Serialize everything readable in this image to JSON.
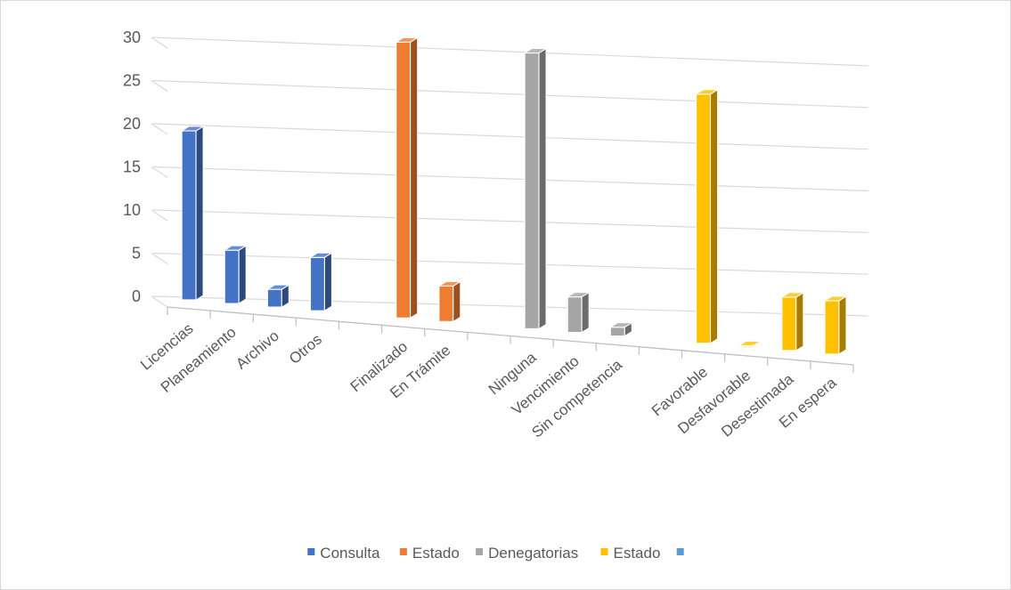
{
  "chart_data": {
    "type": "bar",
    "title": "",
    "xlabel": "",
    "ylabel": "",
    "ylim": [
      0,
      30
    ],
    "yticks": [
      "0",
      "5",
      "10",
      "15",
      "20",
      "25",
      "30"
    ],
    "grid": true,
    "legend_position": "bottom",
    "series": [
      {
        "name": "Consulta",
        "color": "#4472c4",
        "categories": [
          "Licencias",
          "Planeamiento",
          "Archivo",
          "Otros"
        ],
        "values": [
          19,
          6,
          2,
          6
        ]
      },
      {
        "name": "Estado",
        "color": "#ed7d31",
        "categories": [
          "Finalizado",
          "En Trámite"
        ],
        "values": [
          31,
          4
        ]
      },
      {
        "name": "Denegatorias",
        "color": "#a5a5a5",
        "categories": [
          "Ninguna",
          "Vencimiento",
          "Sin competencia"
        ],
        "values": [
          31,
          4,
          1
        ]
      },
      {
        "name": "Estado",
        "color": "#ffc000",
        "categories": [
          "Favorable",
          "Desfavorable",
          "Desestimada",
          "En espera"
        ],
        "values": [
          28,
          0,
          6,
          6
        ]
      }
    ],
    "legend": [
      {
        "label": "Consulta",
        "color": "#4472c4"
      },
      {
        "label": "Estado",
        "color": "#ed7d31"
      },
      {
        "label": "Denegatorias",
        "color": "#a5a5a5"
      },
      {
        "label": "Estado",
        "color": "#ffc000"
      },
      {
        "label": "",
        "color": "#5b9bd5"
      }
    ]
  }
}
